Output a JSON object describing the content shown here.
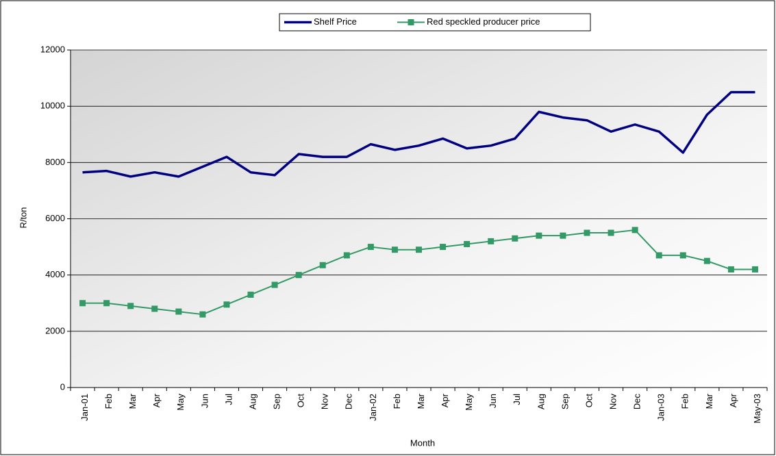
{
  "chart_data": {
    "type": "line",
    "x_label": "Month",
    "y_label": "R/ton",
    "categories": [
      "Jan-01",
      "Feb",
      "Mar",
      "Apr",
      "May",
      "Jun",
      "Jul",
      "Aug",
      "Sep",
      "Oct",
      "Nov",
      "Dec",
      "Jan-02",
      "Feb",
      "Mar",
      "Apr",
      "May",
      "Jun",
      "Jul",
      "Aug",
      "Sep",
      "Oct",
      "Nov",
      "Dec",
      "Jan-03",
      "Feb",
      "Mar",
      "Apr",
      "May-03"
    ],
    "series": [
      {
        "name": "Shelf Price",
        "color": "#000080",
        "values": [
          7650,
          7700,
          7500,
          7650,
          7500,
          7850,
          8200,
          7650,
          7550,
          8300,
          8200,
          8200,
          8650,
          8450,
          8600,
          8850,
          8500,
          8600,
          8850,
          9800,
          9600,
          9500,
          9100,
          9350,
          9100,
          8350,
          9700,
          10500,
          10500
        ]
      },
      {
        "name": "Red speckled producer price",
        "color": "#339966",
        "marker": "square",
        "values": [
          3000,
          3000,
          2900,
          2800,
          2700,
          2600,
          2950,
          3300,
          3650,
          4000,
          4350,
          4700,
          5000,
          4900,
          4900,
          5000,
          5100,
          5200,
          5300,
          5400,
          5400,
          5500,
          5500,
          5600,
          4700,
          4700,
          4500,
          4200,
          4200
        ]
      }
    ],
    "ylim": [
      0,
      12000
    ],
    "yticks": [
      0,
      2000,
      4000,
      6000,
      8000,
      10000,
      12000
    ],
    "grid": true,
    "legend": "top"
  }
}
